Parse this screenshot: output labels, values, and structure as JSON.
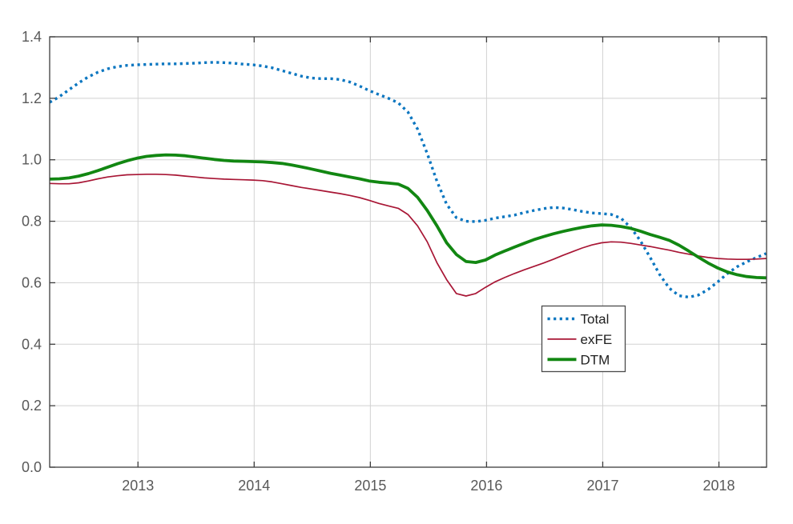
{
  "figure": {
    "background": "#ffffff",
    "axis_color": "#3d3d3d",
    "grid_color": "#d2d2d2",
    "tick_label_color": "#595959",
    "tick_label_size": 18,
    "legend": {
      "border_color": "#4a4a4a",
      "background": "#ffffff",
      "text_color": "#1f1f1f",
      "text_size": 17,
      "entries": [
        {
          "label": "Total",
          "color": "#0b76c0",
          "line_style": "dotted",
          "line_width": 3.4
        },
        {
          "label": "exFE",
          "color": "#a81635",
          "line_style": "solid",
          "line_width": 1.7
        },
        {
          "label": "DTM",
          "color": "#128712",
          "line_style": "solid",
          "line_width": 3.8
        }
      ]
    }
  },
  "chart_data": {
    "type": "line",
    "title": "",
    "xlabel": "",
    "ylabel": "",
    "grid": true,
    "legend_position": "inside lower-center-right",
    "xlim": [
      2012.24,
      2018.41
    ],
    "ylim": [
      0.0,
      1.4
    ],
    "xticks": [
      2013,
      2014,
      2015,
      2016,
      2017,
      2018
    ],
    "xtick_labels": [
      "2013",
      "2014",
      "2015",
      "2016",
      "2017",
      "2018"
    ],
    "yticks": [
      0.0,
      0.2,
      0.4,
      0.6,
      0.8,
      1.0,
      1.2,
      1.4
    ],
    "ytick_labels": [
      "0.0",
      "0.2",
      "0.4",
      "0.6",
      "0.8",
      "1.0",
      "1.2",
      "1.4"
    ],
    "x_start": 2012.24,
    "x_step_years": 0.0833333,
    "series": [
      {
        "name": "Total",
        "color": "#0b76c0",
        "line_style": "dotted",
        "line_width": 3.4,
        "values": [
          1.187,
          1.205,
          1.228,
          1.25,
          1.27,
          1.285,
          1.296,
          1.303,
          1.307,
          1.309,
          1.31,
          1.311,
          1.312,
          1.312,
          1.313,
          1.314,
          1.316,
          1.317,
          1.316,
          1.314,
          1.311,
          1.309,
          1.305,
          1.299,
          1.29,
          1.281,
          1.272,
          1.266,
          1.264,
          1.264,
          1.261,
          1.253,
          1.24,
          1.225,
          1.212,
          1.2,
          1.185,
          1.155,
          1.1,
          1.02,
          0.93,
          0.855,
          0.812,
          0.8,
          0.799,
          0.803,
          0.81,
          0.815,
          0.82,
          0.828,
          0.835,
          0.841,
          0.845,
          0.843,
          0.838,
          0.832,
          0.827,
          0.825,
          0.822,
          0.81,
          0.78,
          0.737,
          0.683,
          0.627,
          0.582,
          0.558,
          0.553,
          0.56,
          0.578,
          0.603,
          0.63,
          0.652,
          0.668,
          0.682,
          0.695
        ]
      },
      {
        "name": "exFE",
        "color": "#a81635",
        "line_style": "solid",
        "line_width": 1.7,
        "values": [
          0.923,
          0.922,
          0.922,
          0.925,
          0.931,
          0.938,
          0.944,
          0.948,
          0.951,
          0.952,
          0.953,
          0.953,
          0.952,
          0.95,
          0.947,
          0.944,
          0.941,
          0.939,
          0.937,
          0.936,
          0.935,
          0.934,
          0.932,
          0.928,
          0.922,
          0.916,
          0.91,
          0.905,
          0.9,
          0.895,
          0.89,
          0.884,
          0.877,
          0.868,
          0.858,
          0.85,
          0.842,
          0.822,
          0.785,
          0.733,
          0.665,
          0.61,
          0.565,
          0.557,
          0.565,
          0.585,
          0.603,
          0.617,
          0.63,
          0.642,
          0.653,
          0.664,
          0.676,
          0.689,
          0.701,
          0.713,
          0.723,
          0.73,
          0.733,
          0.732,
          0.728,
          0.723,
          0.718,
          0.712,
          0.706,
          0.699,
          0.693,
          0.687,
          0.682,
          0.679,
          0.677,
          0.676,
          0.676,
          0.677,
          0.679
        ]
      },
      {
        "name": "DTM",
        "color": "#128712",
        "line_style": "solid",
        "line_width": 3.8,
        "values": [
          0.937,
          0.938,
          0.941,
          0.947,
          0.955,
          0.965,
          0.976,
          0.987,
          0.997,
          1.005,
          1.011,
          1.014,
          1.016,
          1.015,
          1.013,
          1.009,
          1.005,
          1.001,
          0.998,
          0.996,
          0.995,
          0.994,
          0.993,
          0.991,
          0.988,
          0.983,
          0.977,
          0.97,
          0.963,
          0.956,
          0.95,
          0.944,
          0.938,
          0.931,
          0.927,
          0.924,
          0.921,
          0.907,
          0.878,
          0.835,
          0.785,
          0.73,
          0.692,
          0.669,
          0.666,
          0.674,
          0.69,
          0.703,
          0.716,
          0.728,
          0.74,
          0.75,
          0.759,
          0.767,
          0.774,
          0.78,
          0.785,
          0.788,
          0.787,
          0.783,
          0.777,
          0.768,
          0.757,
          0.748,
          0.738,
          0.722,
          0.703,
          0.683,
          0.664,
          0.648,
          0.635,
          0.626,
          0.62,
          0.617,
          0.616
        ]
      }
    ]
  }
}
